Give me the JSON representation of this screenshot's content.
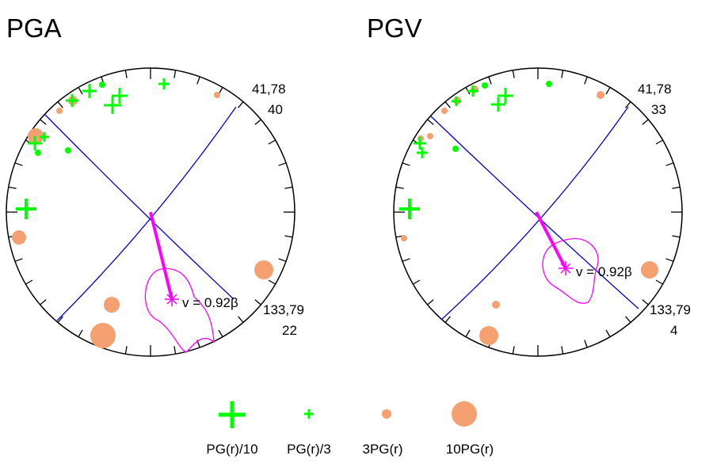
{
  "panels": [
    {
      "title": "PGA",
      "plane1_label": "41,78",
      "plane1_value": "40",
      "plane2_label": "133,79",
      "plane2_value": "22",
      "velocity_label": "v = 0.92β"
    },
    {
      "title": "PGV",
      "plane1_label": "41,78",
      "plane1_value": "33",
      "plane2_label": "133,79",
      "plane2_value": "4",
      "velocity_label": "v = 0.92β"
    }
  ],
  "legend": [
    {
      "label": "PG(r)/10",
      "marker": "large-plus",
      "color": "#00ff00"
    },
    {
      "label": "PG(r)/3",
      "marker": "small-plus",
      "color": "#00ff00"
    },
    {
      "label": "3PG(r)",
      "marker": "small-circle",
      "color": "#f4a070"
    },
    {
      "label": "10PG(r)",
      "marker": "large-circle",
      "color": "#f4a070"
    }
  ],
  "colors": {
    "plane_lines": "#0000cc",
    "rupture": "#ff00ff",
    "plus": "#00ff00",
    "circle": "#f4a070"
  }
}
